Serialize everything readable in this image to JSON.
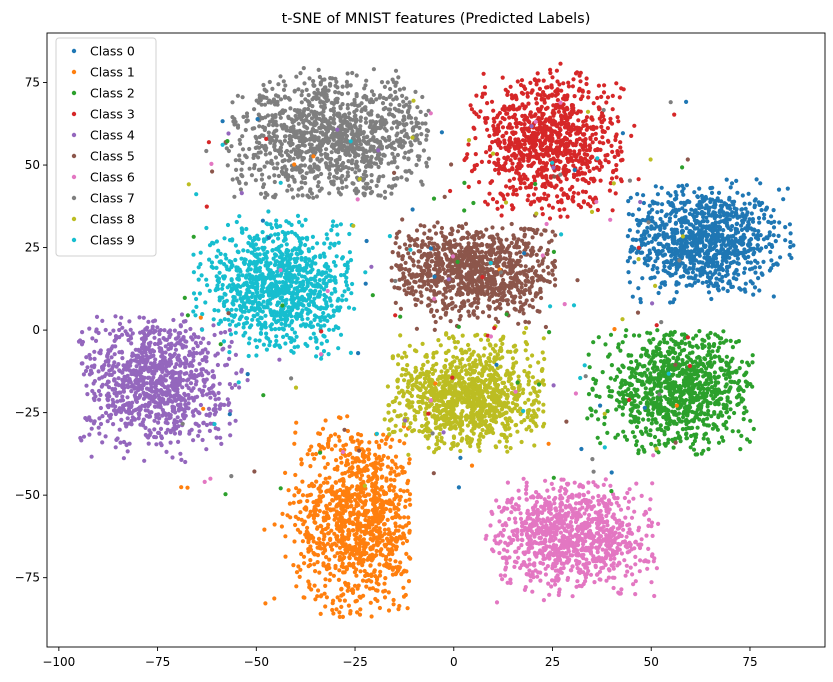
{
  "chart_data": {
    "type": "scatter",
    "title": "t-SNE of MNIST features (Predicted Labels)",
    "xlabel": "",
    "ylabel": "",
    "xlim": [
      -103,
      94
    ],
    "ylim": [
      -96,
      90
    ],
    "xticks": [
      -100,
      -75,
      -50,
      -25,
      0,
      25,
      50,
      75
    ],
    "yticks": [
      -75,
      -50,
      -25,
      0,
      25,
      50,
      75
    ],
    "grid": false,
    "legend": "top-left",
    "series": [
      {
        "name": "Class 0",
        "color": "#1f77b4",
        "cx": 63,
        "cy": 27,
        "sx": 10,
        "sy": 8,
        "n": 1000,
        "clip": [
          44,
          86,
          8,
          46
        ]
      },
      {
        "name": "Class 1",
        "color": "#ff7f0e",
        "cx": -24,
        "cy": -57,
        "sx": 8,
        "sy": 14,
        "n": 1100,
        "clip": [
          -48,
          -11,
          -87,
          -26
        ]
      },
      {
        "name": "Class 2",
        "color": "#2ca02c",
        "cx": 57,
        "cy": -18,
        "sx": 10,
        "sy": 9,
        "n": 1000,
        "clip": [
          33,
          76,
          -38,
          0
        ]
      },
      {
        "name": "Class 3",
        "color": "#d62728",
        "cx": 24,
        "cy": 57,
        "sx": 9,
        "sy": 10,
        "n": 1000,
        "clip": [
          3,
          47,
          33,
          81
        ]
      },
      {
        "name": "Class 4",
        "color": "#9467bd",
        "cx": -76,
        "cy": -15,
        "sx": 9,
        "sy": 10,
        "n": 1000,
        "clip": [
          -95,
          -52,
          -42,
          5
        ]
      },
      {
        "name": "Class 5",
        "color": "#8c564b",
        "cx": 5,
        "cy": 18,
        "sx": 11,
        "sy": 7,
        "n": 1000,
        "clip": [
          -16,
          26,
          0,
          35
        ]
      },
      {
        "name": "Class 6",
        "color": "#e377c2",
        "cx": 30,
        "cy": -62,
        "sx": 10,
        "sy": 8,
        "n": 1000,
        "clip": [
          8,
          53,
          -83,
          -45
        ]
      },
      {
        "name": "Class 7",
        "color": "#7f7f7f",
        "cx": -30,
        "cy": 58,
        "sx": 13,
        "sy": 9,
        "n": 1200,
        "clip": [
          -58,
          -6,
          40,
          80
        ]
      },
      {
        "name": "Class 8",
        "color": "#bcbd22",
        "cx": 4,
        "cy": -20,
        "sx": 10,
        "sy": 8,
        "n": 1100,
        "clip": [
          -17,
          23,
          -38,
          2
        ]
      },
      {
        "name": "Class 9",
        "color": "#17becf",
        "cx": -44,
        "cy": 13,
        "sx": 10,
        "sy": 9,
        "n": 1000,
        "clip": [
          -66,
          -25,
          -9,
          36
        ]
      }
    ]
  }
}
